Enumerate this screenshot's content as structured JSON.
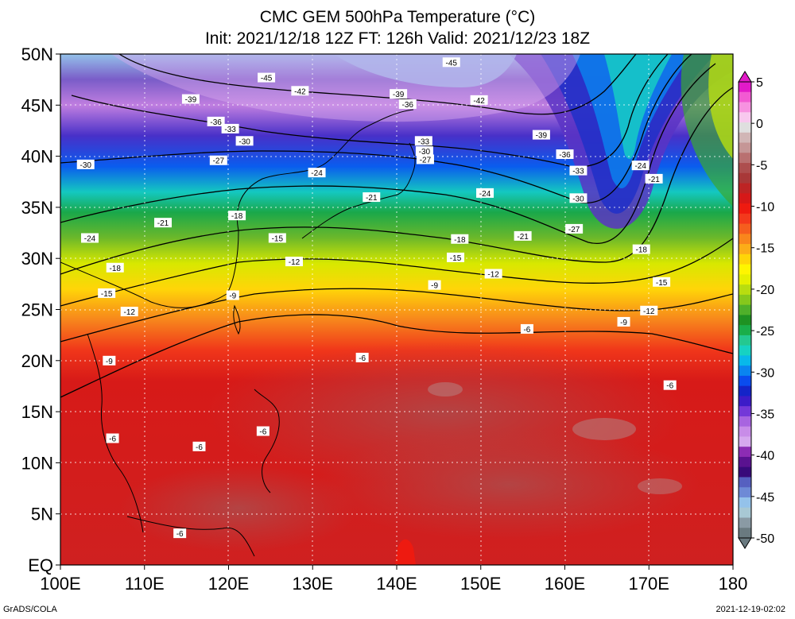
{
  "title_line1": "CMC GEM 500hPa Temperature (°C)",
  "title_line2": "Init: 2021/12/18 12Z  FT: 126h  Valid: 2021/12/23 18Z",
  "credit": "GrADS/COLA",
  "timestamp": "2021-12-19-02:02",
  "map": {
    "lon_range": [
      100,
      180
    ],
    "lat_range": [
      0,
      50
    ],
    "grid": "dotted",
    "lat_labels": [
      "50N",
      "45N",
      "40N",
      "35N",
      "30N",
      "25N",
      "20N",
      "15N",
      "10N",
      "5N",
      "EQ"
    ],
    "lat_values": [
      50,
      45,
      40,
      35,
      30,
      25,
      20,
      15,
      10,
      5,
      0
    ],
    "lon_labels": [
      "100E",
      "110E",
      "120E",
      "130E",
      "140E",
      "150E",
      "160E",
      "170E",
      "180"
    ],
    "lon_values": [
      100,
      110,
      120,
      130,
      140,
      150,
      160,
      170,
      180
    ],
    "contour_labels": [
      {
        "text": "-45",
        "lon": 124.5,
        "lat": 47.7
      },
      {
        "text": "-45",
        "lon": 146.5,
        "lat": 49.2
      },
      {
        "text": "-42",
        "lon": 128.5,
        "lat": 46.4
      },
      {
        "text": "-42",
        "lon": 149.8,
        "lat": 45.5
      },
      {
        "text": "-39",
        "lon": 115.5,
        "lat": 45.6
      },
      {
        "text": "-39",
        "lon": 140.2,
        "lat": 46.1
      },
      {
        "text": "-39",
        "lon": 157.2,
        "lat": 42.1
      },
      {
        "text": "-36",
        "lon": 118.5,
        "lat": 43.4
      },
      {
        "text": "-36",
        "lon": 141.3,
        "lat": 45.1
      },
      {
        "text": "-36",
        "lon": 160.0,
        "lat": 40.2
      },
      {
        "text": "-33",
        "lon": 120.2,
        "lat": 42.7
      },
      {
        "text": "-33",
        "lon": 143.2,
        "lat": 41.5
      },
      {
        "text": "-33",
        "lon": 161.6,
        "lat": 38.6
      },
      {
        "text": "-30",
        "lon": 103.0,
        "lat": 39.2
      },
      {
        "text": "-30",
        "lon": 121.9,
        "lat": 41.5
      },
      {
        "text": "-30",
        "lon": 143.3,
        "lat": 40.5
      },
      {
        "text": "-30",
        "lon": 161.6,
        "lat": 35.9
      },
      {
        "text": "-27",
        "lon": 118.8,
        "lat": 39.6
      },
      {
        "text": "-27",
        "lon": 143.4,
        "lat": 39.7
      },
      {
        "text": "-27",
        "lon": 161.1,
        "lat": 32.9
      },
      {
        "text": "-24",
        "lon": 103.5,
        "lat": 32.0
      },
      {
        "text": "-24",
        "lon": 130.5,
        "lat": 38.4
      },
      {
        "text": "-24",
        "lon": 150.5,
        "lat": 36.4
      },
      {
        "text": "-24",
        "lon": 169.0,
        "lat": 39.1
      },
      {
        "text": "-21",
        "lon": 112.2,
        "lat": 33.5
      },
      {
        "text": "-21",
        "lon": 137.0,
        "lat": 36.0
      },
      {
        "text": "-21",
        "lon": 155.0,
        "lat": 32.2
      },
      {
        "text": "-21",
        "lon": 170.6,
        "lat": 37.8
      },
      {
        "text": "-18",
        "lon": 106.5,
        "lat": 29.1
      },
      {
        "text": "-18",
        "lon": 121.0,
        "lat": 34.2
      },
      {
        "text": "-18",
        "lon": 147.5,
        "lat": 31.9
      },
      {
        "text": "-18",
        "lon": 169.1,
        "lat": 30.9
      },
      {
        "text": "-15",
        "lon": 105.5,
        "lat": 26.6
      },
      {
        "text": "-15",
        "lon": 125.8,
        "lat": 32.0
      },
      {
        "text": "-15",
        "lon": 147.0,
        "lat": 30.1
      },
      {
        "text": "-15",
        "lon": 171.5,
        "lat": 27.7
      },
      {
        "text": "-12",
        "lon": 108.2,
        "lat": 24.8
      },
      {
        "text": "-12",
        "lon": 127.8,
        "lat": 29.7
      },
      {
        "text": "-12",
        "lon": 151.5,
        "lat": 28.5
      },
      {
        "text": "-12",
        "lon": 170.0,
        "lat": 24.9
      },
      {
        "text": "-9",
        "lon": 105.8,
        "lat": 20.0
      },
      {
        "text": "-9",
        "lon": 120.5,
        "lat": 26.4
      },
      {
        "text": "-9",
        "lon": 144.5,
        "lat": 27.4
      },
      {
        "text": "-9",
        "lon": 167.0,
        "lat": 23.8
      },
      {
        "text": "-6",
        "lon": 106.2,
        "lat": 12.4
      },
      {
        "text": "-6",
        "lon": 116.5,
        "lat": 11.6
      },
      {
        "text": "-6",
        "lon": 114.2,
        "lat": 3.1
      },
      {
        "text": "-6",
        "lon": 124.1,
        "lat": 13.1
      },
      {
        "text": "-6",
        "lon": 135.9,
        "lat": 20.3
      },
      {
        "text": "-6",
        "lon": 155.5,
        "lat": 23.1
      },
      {
        "text": "-6",
        "lon": 172.5,
        "lat": 17.6
      }
    ]
  },
  "colorbar": {
    "labels": [
      "5",
      "0",
      "-5",
      "-10",
      "-15",
      "-20",
      "-25",
      "-30",
      "-35",
      "-40",
      "-45",
      "-50"
    ],
    "values": [
      5,
      0,
      -5,
      -10,
      -15,
      -20,
      -25,
      -30,
      -35,
      -40,
      -45,
      -50
    ],
    "colors": [
      "#e21ac8",
      "#f25ad2",
      "#f792e0",
      "#f8c8ee",
      "#dfdfdf",
      "#d1b6b6",
      "#c59696",
      "#b97070",
      "#ad4e4e",
      "#a83838",
      "#bd2424",
      "#d61818",
      "#ee1a10",
      "#f3391c",
      "#f55e1e",
      "#f9861c",
      "#fcad18",
      "#ffd508",
      "#fff500",
      "#e6f000",
      "#b8dd10",
      "#86c81c",
      "#4fb02a",
      "#1e9222",
      "#1aae4a",
      "#24c890",
      "#16d2c2",
      "#08b8ea",
      "#0a84f0",
      "#0a4cee",
      "#1424c8",
      "#3c1cc8",
      "#7438d8",
      "#a864e0",
      "#c88ce8",
      "#d6a8ee",
      "#8c2cb4",
      "#5a1290",
      "#380a7a",
      "#5660c0",
      "#6e8ad6",
      "#94c2ea",
      "#a8c8d4",
      "#8a9aa4",
      "#6a7a80"
    ]
  },
  "field_colors": {
    "polar": "#6c3ec0",
    "cold_core": "#2c1e9a",
    "mid": "#17b866",
    "warm": "#f6d90a",
    "tropic": "#d41c1c",
    "deep_tropic": "#a83a3a",
    "land": "#000000"
  }
}
